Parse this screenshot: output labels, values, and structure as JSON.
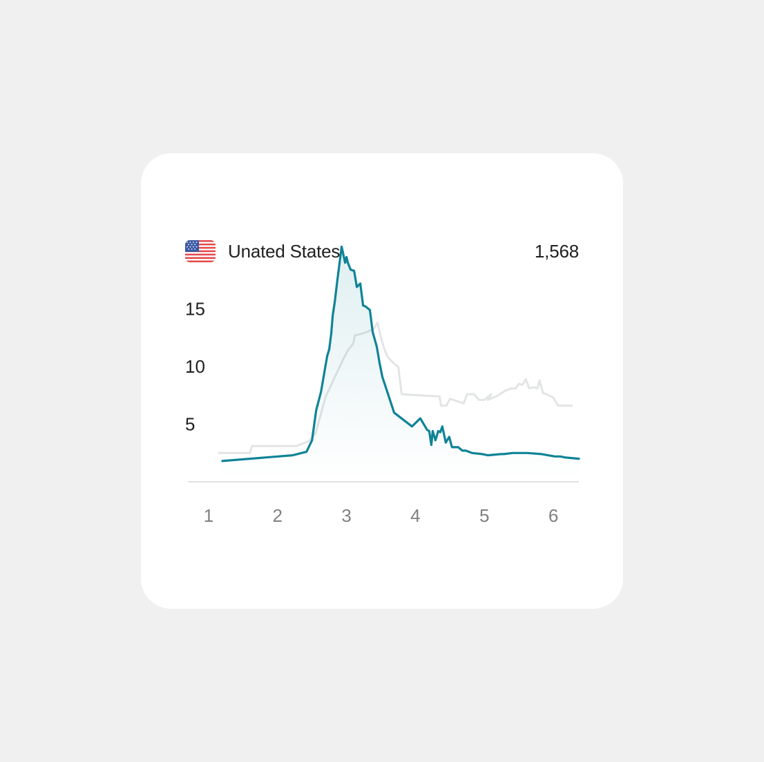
{
  "header": {
    "country": "Unated States",
    "total": "1,568",
    "flag_icon": "us-flag-icon"
  },
  "colors": {
    "background": "#f0f0f0",
    "card": "#ffffff",
    "primary_line": "#0e8396",
    "secondary_line": "#e2e4e5",
    "axis": "#e0e0e0",
    "y_tick_text": "#1f1f1f",
    "x_tick_text": "#808080"
  },
  "chart_data": {
    "type": "line",
    "xlim": [
      0.7,
      6.37
    ],
    "ylim": [
      0,
      20
    ],
    "grid": false,
    "x_ticks": [
      1,
      2,
      3,
      4,
      5,
      6
    ],
    "x_tick_labels": [
      "1",
      "2",
      "3",
      "4",
      "5",
      "6"
    ],
    "y_ticks": [
      5,
      10,
      15
    ],
    "y_tick_labels": [
      "5",
      "10",
      "15"
    ],
    "series": [
      {
        "style": "secondary",
        "x": [
          1.15,
          1.6,
          1.63,
          2.27,
          2.45,
          2.55,
          2.7,
          2.95,
          3.02,
          3.1,
          3.12,
          3.2,
          3.3,
          3.4,
          3.45,
          3.5,
          3.55,
          3.6,
          3.7,
          3.75,
          3.8,
          4.05,
          4.35,
          4.37,
          4.45,
          4.5,
          4.7,
          4.75,
          4.85,
          4.92,
          5.0,
          5.1,
          5.05,
          5.2,
          5.3,
          5.4,
          5.45,
          5.5,
          5.55,
          5.6,
          5.65,
          5.72,
          5.77,
          5.8,
          5.85,
          5.9,
          6.0,
          6.07,
          6.27
        ],
        "y": [
          2.5,
          2.5,
          3.1,
          3.1,
          3.5,
          4.2,
          7.4,
          10.6,
          11.4,
          12.0,
          12.7,
          12.8,
          13.0,
          13.3,
          13.8,
          12.5,
          11.5,
          10.8,
          10.2,
          10.0,
          7.6,
          7.5,
          7.4,
          6.6,
          6.6,
          7.2,
          6.8,
          7.6,
          7.6,
          7.1,
          7.1,
          7.6,
          7.1,
          7.5,
          7.9,
          8.1,
          8.1,
          8.5,
          8.4,
          8.9,
          8.1,
          8.2,
          8.1,
          8.8,
          7.7,
          7.6,
          7.3,
          6.6,
          6.6
        ]
      },
      {
        "style": "primary",
        "x": [
          1.2,
          2.22,
          2.42,
          2.5,
          2.56,
          2.63,
          2.72,
          2.75,
          2.78,
          2.8,
          2.83,
          2.87,
          2.93,
          2.98,
          3.0,
          3.02,
          3.06,
          3.11,
          3.15,
          3.2,
          3.24,
          3.28,
          3.34,
          3.38,
          3.44,
          3.48,
          3.52,
          3.57,
          3.63,
          3.69,
          3.82,
          3.95,
          4.07,
          4.13,
          4.17,
          4.2,
          4.23,
          4.25,
          4.29,
          4.33,
          4.36,
          4.39,
          4.44,
          4.49,
          4.53,
          4.58,
          4.62,
          4.68,
          4.73,
          4.82,
          4.97,
          5.05,
          5.24,
          5.28,
          5.41,
          5.62,
          5.83,
          6.02,
          6.1,
          6.18,
          6.37
        ],
        "y": [
          1.8,
          2.3,
          2.6,
          3.6,
          6.2,
          7.8,
          10.9,
          11.5,
          12.9,
          14.4,
          15.6,
          17.6,
          20.4,
          19.0,
          19.5,
          19.0,
          18.4,
          18.3,
          16.9,
          17.2,
          15.3,
          15.2,
          14.9,
          13.0,
          11.7,
          10.3,
          9.1,
          8.2,
          7.1,
          6.0,
          5.4,
          4.8,
          5.5,
          4.9,
          4.5,
          4.4,
          3.2,
          4.4,
          3.6,
          4.4,
          4.3,
          4.8,
          3.4,
          3.9,
          3.0,
          3.0,
          3.0,
          2.7,
          2.7,
          2.5,
          2.4,
          2.3,
          2.4,
          2.4,
          2.5,
          2.5,
          2.4,
          2.2,
          2.2,
          2.1,
          2.0
        ]
      }
    ]
  }
}
